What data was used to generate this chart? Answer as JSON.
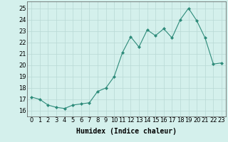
{
  "x": [
    0,
    1,
    2,
    3,
    4,
    5,
    6,
    7,
    8,
    9,
    10,
    11,
    12,
    13,
    14,
    15,
    16,
    17,
    18,
    19,
    20,
    21,
    22,
    23
  ],
  "y": [
    17.2,
    17.0,
    16.5,
    16.3,
    16.2,
    16.5,
    16.6,
    16.7,
    17.7,
    18.0,
    19.0,
    21.1,
    22.5,
    21.6,
    23.1,
    22.6,
    23.2,
    22.4,
    24.0,
    25.0,
    23.9,
    22.4,
    20.1,
    20.2
  ],
  "xlabel": "Humidex (Indice chaleur)",
  "yticks": [
    16,
    17,
    18,
    19,
    20,
    21,
    22,
    23,
    24,
    25
  ],
  "xticks": [
    0,
    1,
    2,
    3,
    4,
    5,
    6,
    7,
    8,
    9,
    10,
    11,
    12,
    13,
    14,
    15,
    16,
    17,
    18,
    19,
    20,
    21,
    22,
    23
  ],
  "line_color": "#2e8b7a",
  "marker_color": "#2e8b7a",
  "bg_color": "#d4f0ec",
  "grid_color": "#b8d8d4",
  "label_fontsize": 7,
  "tick_fontsize": 6,
  "ylim_min": 15.5,
  "ylim_max": 25.6,
  "xlim_min": -0.5,
  "xlim_max": 23.5
}
